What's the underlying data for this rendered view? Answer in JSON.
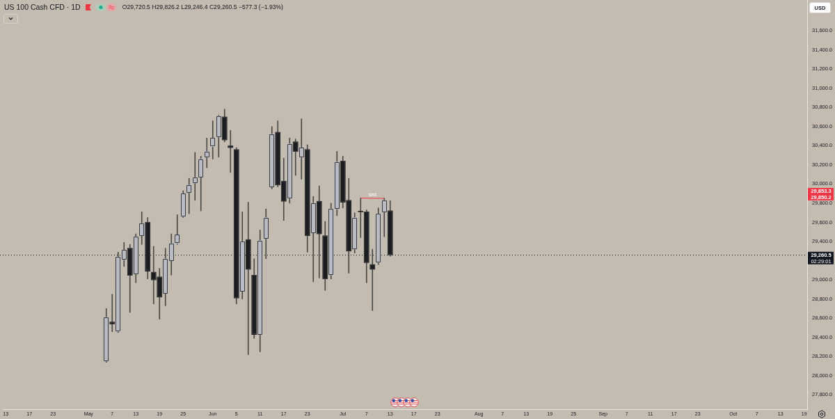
{
  "chart_data": {
    "type": "candlestick",
    "title": "US 100 Cash CFD · 1D",
    "subtitle": "O29,720.5 H29,826.2 L29,246.4 C29,260.5 −577.3 (−1.93%)",
    "categories": [
      "13",
      null,
      null,
      null,
      "17",
      null,
      null,
      null,
      "23",
      null,
      null,
      null,
      null,
      null,
      "May",
      null,
      null,
      null,
      "7",
      null,
      null,
      null,
      "13",
      null,
      null,
      null,
      "19",
      null,
      null,
      null,
      "25",
      null,
      null,
      null,
      null,
      "Jun",
      null,
      null,
      null,
      "5",
      null,
      null,
      null,
      "11",
      null,
      null,
      null,
      "17",
      null,
      null,
      null,
      "23",
      null,
      null,
      null,
      null,
      null,
      "Jul",
      null,
      null,
      null,
      "7",
      null,
      null,
      null,
      "13",
      null,
      null,
      null,
      "17",
      null,
      null,
      null,
      "23",
      null,
      null,
      null,
      null,
      null,
      null,
      "Aug",
      null,
      null,
      null,
      "7",
      null,
      null,
      null,
      "13",
      null,
      null,
      null,
      "19",
      null,
      null,
      null,
      "25",
      null,
      null,
      null,
      null,
      "Sep",
      null,
      null,
      null,
      "7",
      null,
      null,
      null,
      "11",
      null,
      null,
      null,
      "17",
      null,
      null,
      null,
      "23",
      null,
      null,
      null,
      null,
      null,
      "Oct",
      null,
      null,
      null,
      "7",
      null,
      null,
      null,
      "13",
      null,
      null,
      null,
      "19"
    ],
    "ohlc": [
      null,
      null,
      null,
      null,
      null,
      null,
      null,
      null,
      null,
      null,
      null,
      null,
      null,
      null,
      null,
      null,
      null,
      [
        28150,
        28700,
        28140,
        28610
      ],
      [
        28560,
        28850,
        28460,
        28540
      ],
      [
        28460,
        29290,
        28450,
        29240
      ],
      [
        29210,
        29390,
        29140,
        29310
      ],
      [
        29330,
        29370,
        28660,
        29050
      ],
      [
        29060,
        29480,
        28970,
        29450
      ],
      [
        29460,
        29710,
        29370,
        29590
      ],
      [
        29600,
        29650,
        29010,
        29090
      ],
      [
        29080,
        29350,
        28750,
        29000
      ],
      [
        29030,
        29120,
        28590,
        28820
      ],
      [
        28860,
        29330,
        28730,
        29220
      ],
      [
        29200,
        29480,
        29050,
        29380
      ],
      [
        29380,
        29680,
        29370,
        29470
      ],
      [
        29660,
        29930,
        29650,
        29900
      ],
      [
        29910,
        30060,
        29690,
        29990
      ],
      [
        30010,
        30330,
        29830,
        30070
      ],
      [
        30070,
        30290,
        29720,
        30260
      ],
      [
        30280,
        30480,
        30170,
        30340
      ],
      [
        30390,
        30660,
        30260,
        30480
      ],
      [
        30490,
        30720,
        30280,
        30710
      ],
      [
        30700,
        30780,
        30440,
        30460
      ],
      [
        30400,
        30560,
        30120,
        30380
      ],
      [
        30360,
        30380,
        28750,
        28810
      ],
      [
        28880,
        29710,
        28800,
        29400
      ],
      [
        29420,
        29810,
        28220,
        29110
      ],
      [
        29050,
        29220,
        28390,
        28430
      ],
      [
        28430,
        29520,
        28250,
        29410
      ],
      [
        29430,
        29740,
        29220,
        29650
      ],
      [
        29970,
        30600,
        29950,
        30520
      ],
      [
        30540,
        30660,
        29970,
        29990
      ],
      [
        30030,
        30270,
        29620,
        29820
      ],
      [
        29850,
        30480,
        29800,
        30420
      ],
      [
        30440,
        30470,
        30090,
        30340
      ],
      [
        30280,
        30680,
        30050,
        30380
      ],
      [
        30360,
        30410,
        29290,
        29460
      ],
      [
        29490,
        29870,
        28980,
        29800
      ],
      [
        29820,
        29980,
        29020,
        29480
      ],
      [
        29460,
        29610,
        28890,
        29010
      ],
      [
        29050,
        29800,
        29010,
        29740
      ],
      [
        29740,
        30340,
        29670,
        30230
      ],
      [
        30240,
        30290,
        29750,
        29810
      ],
      [
        29830,
        30060,
        29070,
        29300
      ],
      [
        29320,
        29700,
        29280,
        29650
      ],
      [
        29710,
        29853.3,
        29440,
        29710
      ],
      [
        29710,
        29730,
        28970,
        29180
      ],
      [
        29160,
        29320,
        28680,
        29110
      ],
      [
        29180,
        29750,
        29160,
        29690
      ],
      [
        29710,
        29850.2,
        29450,
        29830
      ],
      [
        29720.5,
        29826.2,
        29246.4,
        29260.5
      ],
      null,
      null,
      null,
      null,
      null,
      null,
      null,
      null,
      null,
      null,
      null,
      null,
      null,
      null,
      null,
      null,
      null,
      null,
      null,
      null,
      null,
      null,
      null,
      null,
      null,
      null,
      null,
      null,
      null,
      null,
      null,
      null,
      null,
      null,
      null,
      null,
      null,
      null,
      null,
      null,
      null,
      null,
      null,
      null,
      null,
      null,
      null,
      null,
      null,
      null,
      null,
      null,
      null,
      null,
      null,
      null,
      null,
      null,
      null,
      null,
      null,
      null,
      null,
      null,
      null,
      null,
      null,
      null,
      null,
      null
    ],
    "colors": [
      null,
      null,
      null,
      null,
      null,
      null,
      null,
      null,
      null,
      null,
      null,
      null,
      null,
      null,
      null,
      null,
      null,
      "#b8bbc3",
      "#1c1d21",
      "#b8bbc3",
      "#b8bbc3",
      "#1c1d21",
      "#b8bbc3",
      "#b8bbc3",
      "#1c1d21",
      "#1c1d21",
      "#1c1d21",
      "#b8bbc3",
      "#b8bbc3",
      "#b8bbc3",
      "#b8bbc3",
      "#b8bbc3",
      "#b8bbc3",
      "#b8bbc3",
      "#b8bbc3",
      "#b8bbc3",
      "#b8bbc3",
      "#1c1d21",
      "#1c1d21",
      "#1c1d21",
      "#b8bbc3",
      "#1c1d21",
      "#1c1d21",
      "#b8bbc3",
      "#b8bbc3",
      "#b8bbc3",
      "#1c1d21",
      "#1c1d21",
      "#b8bbc3",
      "#1c1d21",
      "#b8bbc3",
      "#1c1d21",
      "#b8bbc3",
      "#1c1d21",
      "#1c1d21",
      "#b8bbc3",
      "#b8bbc3",
      "#1c1d21",
      "#1c1d21",
      "#b8bbc3",
      "#1c1d21",
      "#1c1d21",
      "#1c1d21",
      "#b8bbc3",
      "#b8bbc3",
      "#1c1d21",
      null,
      null,
      null,
      null,
      null,
      null,
      null,
      null,
      null,
      null,
      null,
      null,
      null,
      null,
      null,
      null,
      null,
      null,
      null,
      null,
      null,
      null,
      null,
      null,
      null,
      null,
      null,
      null,
      null,
      null,
      null,
      null,
      null,
      null,
      null,
      null,
      null,
      null,
      null,
      null,
      null,
      null,
      null,
      null,
      null,
      null,
      null,
      null,
      null,
      null,
      null,
      null,
      null,
      null,
      null,
      null,
      null,
      null,
      null,
      null,
      null,
      null,
      null,
      null,
      null,
      null,
      null,
      null,
      null,
      null
    ],
    "series": [
      {
        "type": "line",
        "name": "smt",
        "color": "#f23645",
        "values": [
          null,
          null,
          null,
          null,
          null,
          null,
          null,
          null,
          null,
          null,
          null,
          null,
          null,
          null,
          null,
          null,
          null,
          null,
          null,
          null,
          null,
          null,
          null,
          null,
          null,
          null,
          null,
          null,
          null,
          null,
          null,
          null,
          null,
          null,
          null,
          null,
          null,
          null,
          null,
          null,
          null,
          null,
          null,
          null,
          null,
          null,
          null,
          null,
          null,
          null,
          null,
          null,
          null,
          null,
          null,
          null,
          null,
          null,
          null,
          null,
          29853.3,
          null,
          null,
          null,
          29850.2,
          null,
          null,
          null,
          null,
          null,
          null,
          null,
          null,
          null,
          null,
          null,
          null,
          null,
          null,
          null,
          null,
          null,
          null,
          null,
          null,
          null,
          null,
          null,
          null,
          null,
          null,
          null,
          null,
          null,
          null,
          null,
          null,
          null,
          null,
          null,
          null,
          null,
          null,
          null,
          null,
          null,
          null,
          null,
          null,
          null,
          null,
          null,
          null,
          null,
          null,
          null,
          null,
          null,
          null,
          null,
          null,
          null,
          null,
          null,
          null,
          null,
          null,
          null,
          null,
          null,
          null,
          null,
          null,
          null,
          null,
          null
        ]
      }
    ],
    "ylim": [
      27650,
      31920
    ],
    "yticks": [
      {
        "value": 27800,
        "label": "27,800.0"
      },
      {
        "value": 28000,
        "label": "28,000.0"
      },
      {
        "value": 28200,
        "label": "28,200.0"
      },
      {
        "value": 28400,
        "label": "28,400.0"
      },
      {
        "value": 28600,
        "label": "28,600.0"
      },
      {
        "value": 28800,
        "label": "28,800.0"
      },
      {
        "value": 29000,
        "label": "29,000.0"
      },
      {
        "value": 29400,
        "label": "29,400.0"
      },
      {
        "value": 29600,
        "label": "29,600.0"
      },
      {
        "value": 29800,
        "label": "29,800.0"
      },
      {
        "value": 30000,
        "label": "30,000.0"
      },
      {
        "value": 30200,
        "label": "30,200.0"
      },
      {
        "value": 30400,
        "label": "30,400.0"
      },
      {
        "value": 30600,
        "label": "30,600.0"
      },
      {
        "value": 30800,
        "label": "30,800.0"
      },
      {
        "value": 31000,
        "label": "31,000.0"
      },
      {
        "value": 31200,
        "label": "31,200.0"
      },
      {
        "value": 31400,
        "label": "31,400.0"
      },
      {
        "value": 31600,
        "label": "31,600.0"
      }
    ],
    "ref_lines": [
      {
        "axis": "y",
        "value": 29260.5,
        "label": "29,260.5",
        "color": "#131722",
        "line_style": "dotted"
      }
    ],
    "annotations": [
      "29,853.3",
      "29,850.2",
      "02:29:01",
      "USD"
    ]
  }
}
